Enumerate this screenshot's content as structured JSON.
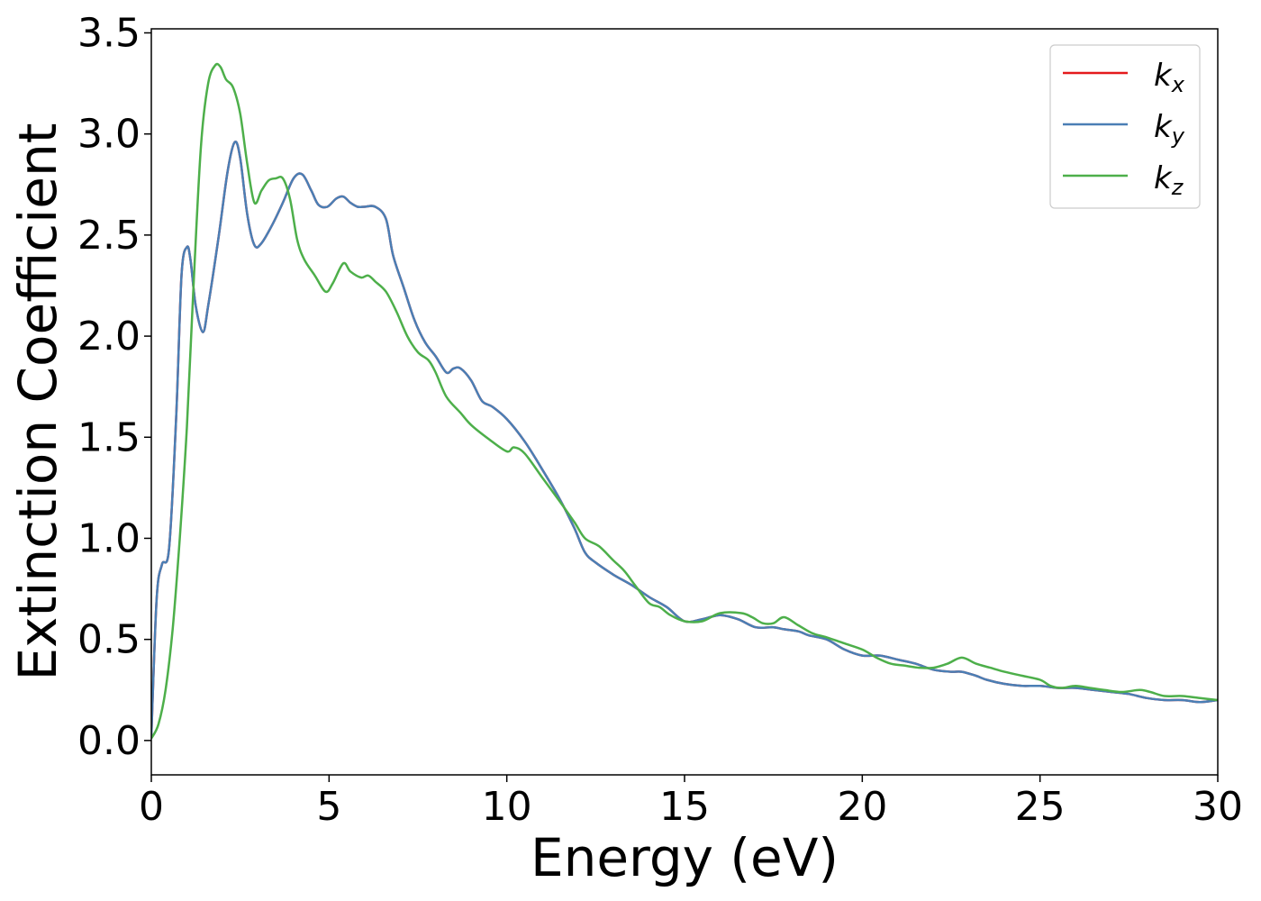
{
  "chart_data": {
    "type": "line",
    "xlabel": "Energy (eV)",
    "ylabel": "Extinction Coefficient",
    "xlim": [
      0,
      30
    ],
    "ylim": [
      -0.17,
      3.52
    ],
    "xticks": [
      0,
      5,
      10,
      15,
      20,
      25,
      30
    ],
    "xtick_labels": [
      "0",
      "5",
      "10",
      "15",
      "20",
      "25",
      "30"
    ],
    "yticks": [
      0.0,
      0.5,
      1.0,
      1.5,
      2.0,
      2.5,
      3.0,
      3.5
    ],
    "ytick_labels": [
      "0.0",
      "0.5",
      "1.0",
      "1.5",
      "2.0",
      "2.5",
      "3.0",
      "3.5"
    ],
    "grid": false,
    "legend_position": "top-right",
    "series": [
      {
        "name": "k",
        "subscript": "x",
        "color": "#e41a1c",
        "x": [
          0,
          0.15,
          0.3,
          0.5,
          0.7,
          0.85,
          1.0,
          1.1,
          1.25,
          1.45,
          1.6,
          1.9,
          2.15,
          2.35,
          2.5,
          2.7,
          2.9,
          3.1,
          3.4,
          3.7,
          4.0,
          4.25,
          4.5,
          4.7,
          4.95,
          5.2,
          5.4,
          5.6,
          5.8,
          6.0,
          6.3,
          6.6,
          6.8,
          7.1,
          7.4,
          7.7,
          8.0,
          8.3,
          8.5,
          8.7,
          9.0,
          9.3,
          9.6,
          10.0,
          10.5,
          11.0,
          11.5,
          11.9,
          12.2,
          12.5,
          13.0,
          13.5,
          14.0,
          14.5,
          15.0,
          15.5,
          16.0,
          16.5,
          17.0,
          17.5,
          17.8,
          18.2,
          18.5,
          19.0,
          19.5,
          20.0,
          20.5,
          21.0,
          21.5,
          22.0,
          22.5,
          22.8,
          23.2,
          23.5,
          24.0,
          24.5,
          25.0,
          25.5,
          26.0,
          26.5,
          27.0,
          27.5,
          28.0,
          28.5,
          29.0,
          29.5,
          30.0
        ],
        "values": [
          0.02,
          0.7,
          0.87,
          0.95,
          1.6,
          2.3,
          2.44,
          2.38,
          2.15,
          2.02,
          2.15,
          2.5,
          2.82,
          2.96,
          2.88,
          2.6,
          2.45,
          2.46,
          2.55,
          2.66,
          2.78,
          2.8,
          2.72,
          2.65,
          2.64,
          2.68,
          2.69,
          2.66,
          2.64,
          2.64,
          2.64,
          2.58,
          2.4,
          2.24,
          2.08,
          1.97,
          1.9,
          1.82,
          1.84,
          1.84,
          1.78,
          1.68,
          1.65,
          1.59,
          1.48,
          1.34,
          1.19,
          1.05,
          0.93,
          0.88,
          0.82,
          0.77,
          0.71,
          0.66,
          0.59,
          0.6,
          0.62,
          0.6,
          0.56,
          0.56,
          0.55,
          0.54,
          0.52,
          0.5,
          0.45,
          0.42,
          0.42,
          0.4,
          0.38,
          0.35,
          0.34,
          0.34,
          0.32,
          0.3,
          0.28,
          0.27,
          0.27,
          0.26,
          0.26,
          0.25,
          0.24,
          0.23,
          0.21,
          0.2,
          0.2,
          0.19,
          0.2
        ]
      },
      {
        "name": "k",
        "subscript": "y",
        "color": "#4a7fb5",
        "x": [
          0,
          0.15,
          0.3,
          0.5,
          0.7,
          0.85,
          1.0,
          1.1,
          1.25,
          1.45,
          1.6,
          1.9,
          2.15,
          2.35,
          2.5,
          2.7,
          2.9,
          3.1,
          3.4,
          3.7,
          4.0,
          4.25,
          4.5,
          4.7,
          4.95,
          5.2,
          5.4,
          5.6,
          5.8,
          6.0,
          6.3,
          6.6,
          6.8,
          7.1,
          7.4,
          7.7,
          8.0,
          8.3,
          8.5,
          8.7,
          9.0,
          9.3,
          9.6,
          10.0,
          10.5,
          11.0,
          11.5,
          11.9,
          12.2,
          12.5,
          13.0,
          13.5,
          14.0,
          14.5,
          15.0,
          15.5,
          16.0,
          16.5,
          17.0,
          17.5,
          17.8,
          18.2,
          18.5,
          19.0,
          19.5,
          20.0,
          20.5,
          21.0,
          21.5,
          22.0,
          22.5,
          22.8,
          23.2,
          23.5,
          24.0,
          24.5,
          25.0,
          25.5,
          26.0,
          26.5,
          27.0,
          27.5,
          28.0,
          28.5,
          29.0,
          29.5,
          30.0
        ],
        "values": [
          0.02,
          0.7,
          0.87,
          0.95,
          1.6,
          2.3,
          2.44,
          2.38,
          2.15,
          2.02,
          2.15,
          2.5,
          2.82,
          2.96,
          2.88,
          2.6,
          2.45,
          2.46,
          2.55,
          2.66,
          2.78,
          2.8,
          2.72,
          2.65,
          2.64,
          2.68,
          2.69,
          2.66,
          2.64,
          2.64,
          2.64,
          2.58,
          2.4,
          2.24,
          2.08,
          1.97,
          1.9,
          1.82,
          1.84,
          1.84,
          1.78,
          1.68,
          1.65,
          1.59,
          1.48,
          1.34,
          1.19,
          1.05,
          0.93,
          0.88,
          0.82,
          0.77,
          0.71,
          0.66,
          0.59,
          0.6,
          0.62,
          0.6,
          0.56,
          0.56,
          0.55,
          0.54,
          0.52,
          0.5,
          0.45,
          0.42,
          0.42,
          0.4,
          0.38,
          0.35,
          0.34,
          0.34,
          0.32,
          0.3,
          0.28,
          0.27,
          0.27,
          0.26,
          0.26,
          0.25,
          0.24,
          0.23,
          0.21,
          0.2,
          0.2,
          0.19,
          0.2
        ]
      },
      {
        "name": "k",
        "subscript": "z",
        "color": "#4daf4a",
        "x": [
          0,
          0.2,
          0.4,
          0.6,
          0.8,
          1.0,
          1.2,
          1.4,
          1.6,
          1.8,
          1.95,
          2.1,
          2.3,
          2.5,
          2.7,
          2.9,
          3.1,
          3.3,
          3.5,
          3.7,
          3.9,
          4.1,
          4.3,
          4.6,
          4.9,
          5.1,
          5.4,
          5.6,
          5.9,
          6.1,
          6.3,
          6.6,
          6.9,
          7.2,
          7.5,
          7.8,
          8.0,
          8.3,
          8.7,
          9.0,
          9.5,
          10.0,
          10.2,
          10.5,
          11.0,
          11.5,
          11.9,
          12.2,
          12.6,
          13.0,
          13.3,
          13.6,
          14.0,
          14.3,
          14.6,
          15.0,
          15.5,
          16.0,
          16.6,
          16.9,
          17.2,
          17.5,
          17.8,
          18.2,
          18.6,
          19.0,
          19.5,
          20.0,
          20.4,
          20.8,
          21.2,
          21.6,
          22.0,
          22.4,
          22.8,
          23.2,
          23.6,
          24.0,
          24.5,
          25.0,
          25.3,
          25.6,
          26.0,
          26.4,
          26.8,
          27.3,
          27.8,
          28.1,
          28.5,
          29.0,
          29.5,
          30.0
        ],
        "values": [
          0.01,
          0.08,
          0.25,
          0.55,
          1.0,
          1.55,
          2.3,
          2.95,
          3.25,
          3.34,
          3.33,
          3.27,
          3.23,
          3.1,
          2.85,
          2.66,
          2.72,
          2.77,
          2.78,
          2.78,
          2.68,
          2.48,
          2.38,
          2.3,
          2.22,
          2.26,
          2.36,
          2.32,
          2.29,
          2.3,
          2.27,
          2.22,
          2.12,
          2.0,
          1.92,
          1.88,
          1.82,
          1.7,
          1.62,
          1.56,
          1.49,
          1.43,
          1.45,
          1.42,
          1.3,
          1.18,
          1.08,
          1.0,
          0.96,
          0.89,
          0.84,
          0.77,
          0.68,
          0.66,
          0.62,
          0.59,
          0.59,
          0.63,
          0.63,
          0.61,
          0.58,
          0.58,
          0.61,
          0.57,
          0.53,
          0.51,
          0.48,
          0.45,
          0.41,
          0.38,
          0.37,
          0.36,
          0.36,
          0.38,
          0.41,
          0.38,
          0.36,
          0.34,
          0.32,
          0.3,
          0.27,
          0.26,
          0.27,
          0.26,
          0.25,
          0.24,
          0.25,
          0.24,
          0.22,
          0.22,
          0.21,
          0.2
        ]
      }
    ]
  }
}
